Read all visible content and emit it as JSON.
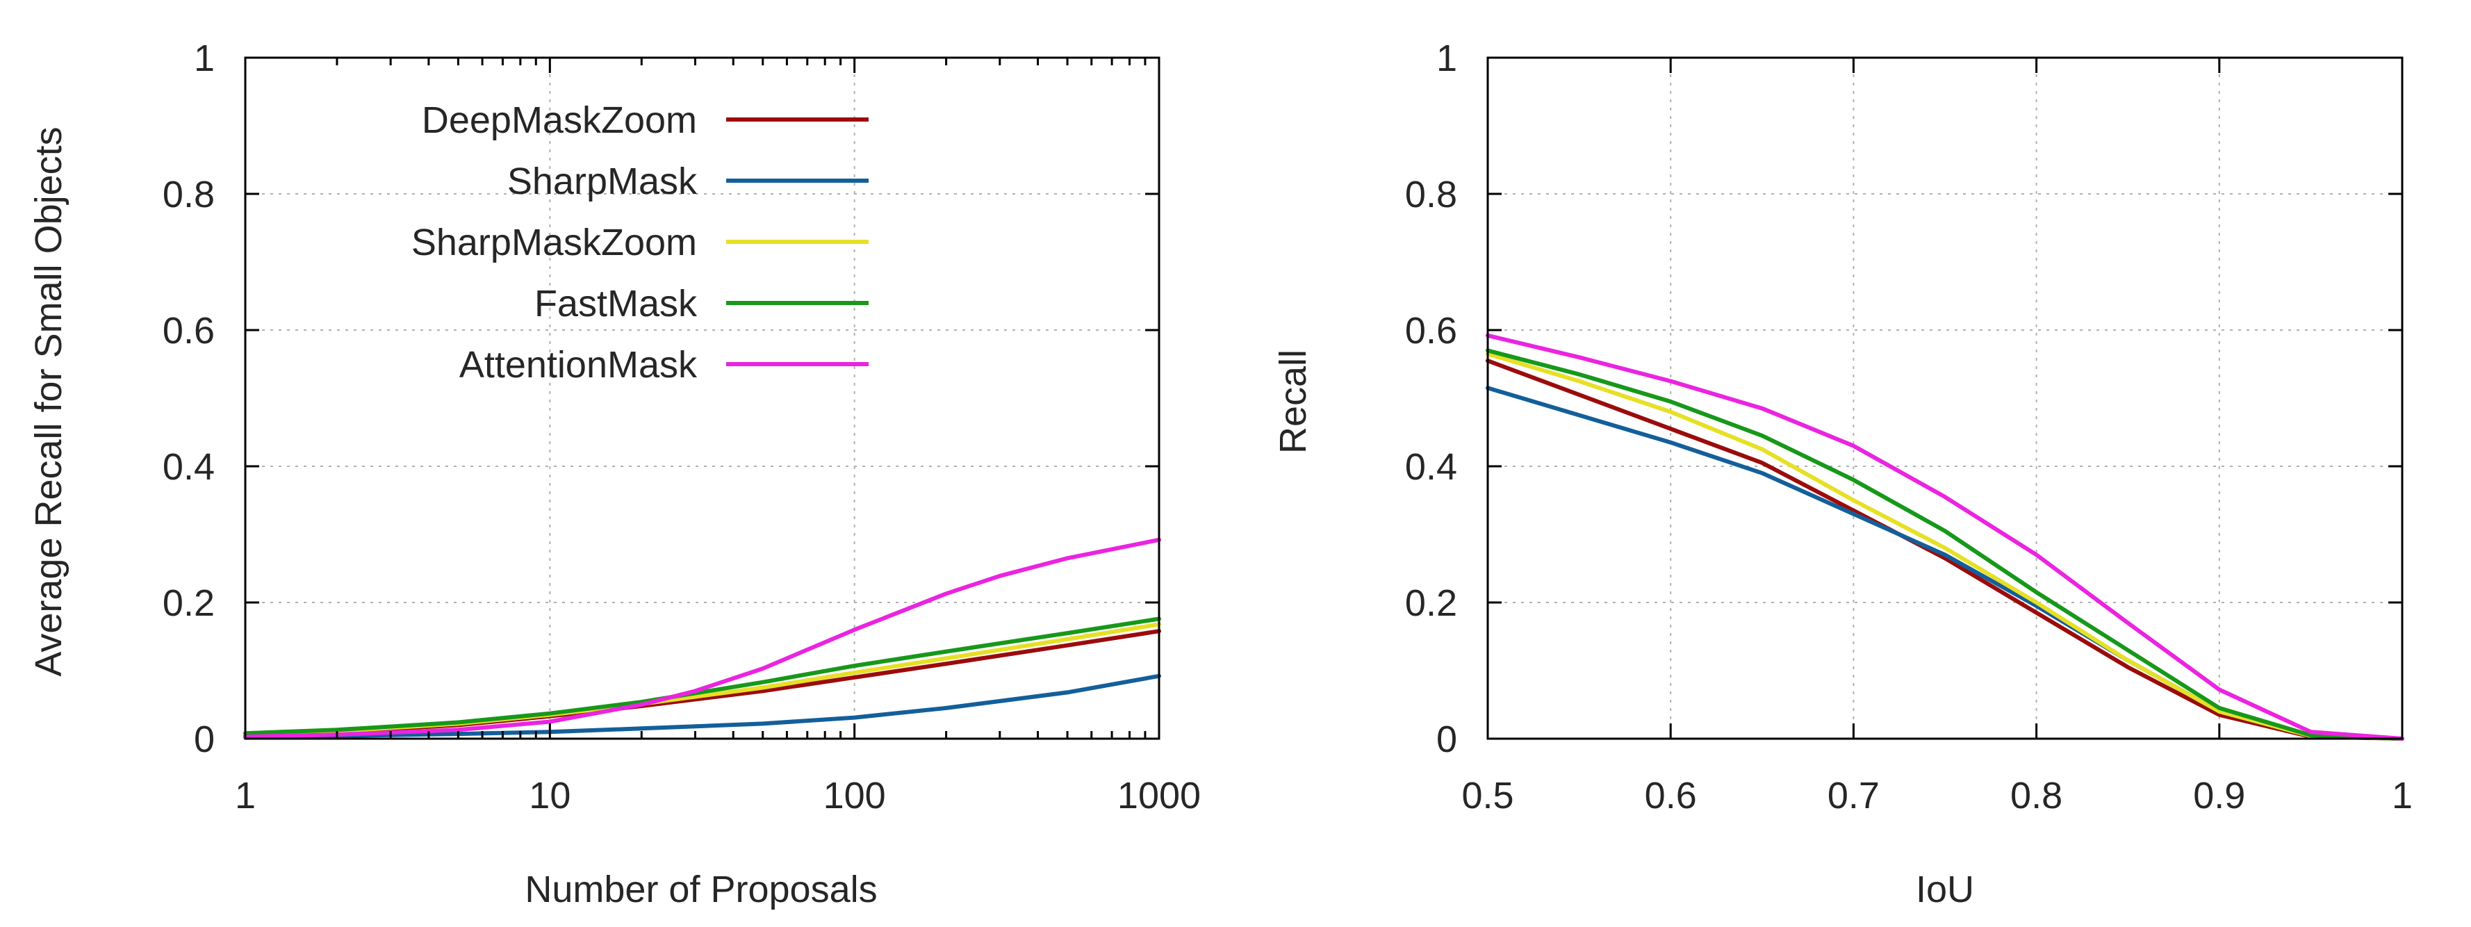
{
  "colors": {
    "DeepMaskZoom": "#9b0b0b",
    "SharpMask": "#135f9a",
    "SharpMaskZoom": "#e6e026",
    "FastMask": "#17981a",
    "AttentionMask": "#ea24e0"
  },
  "chart_data": [
    {
      "type": "line",
      "xlabel": "Number of Proposals",
      "ylabel": "Average Recall for Small Objects",
      "xscale": "log",
      "xlim": [
        1,
        1000
      ],
      "ylim": [
        0,
        1
      ],
      "xticks": [
        "1",
        "10",
        "100",
        "1000"
      ],
      "yticks": [
        "0",
        "0.2",
        "0.4",
        "0.6",
        "0.8",
        "1"
      ],
      "grid": true,
      "legend_position": "top-left",
      "series": [
        {
          "name": "DeepMaskZoom",
          "x": [
            1,
            2,
            5,
            10,
            20,
            50,
            100,
            200,
            500,
            1000
          ],
          "y": [
            0.005,
            0.01,
            0.02,
            0.033,
            0.048,
            0.07,
            0.09,
            0.11,
            0.137,
            0.158
          ]
        },
        {
          "name": "SharpMask",
          "x": [
            1,
            2,
            5,
            10,
            20,
            50,
            100,
            200,
            500,
            1000
          ],
          "y": [
            0.002,
            0.004,
            0.007,
            0.01,
            0.015,
            0.022,
            0.031,
            0.045,
            0.068,
            0.092
          ]
        },
        {
          "name": "SharpMaskZoom",
          "x": [
            1,
            2,
            5,
            10,
            20,
            50,
            100,
            200,
            500,
            1000
          ],
          "y": [
            0.006,
            0.011,
            0.022,
            0.035,
            0.051,
            0.075,
            0.097,
            0.118,
            0.146,
            0.168
          ]
        },
        {
          "name": "FastMask",
          "x": [
            1,
            2,
            5,
            10,
            20,
            50,
            100,
            200,
            500,
            1000
          ],
          "y": [
            0.008,
            0.013,
            0.024,
            0.037,
            0.054,
            0.083,
            0.107,
            0.128,
            0.155,
            0.176
          ]
        },
        {
          "name": "AttentionMask",
          "x": [
            1,
            2,
            5,
            10,
            20,
            30,
            50,
            100,
            200,
            300,
            500,
            1000
          ],
          "y": [
            0.003,
            0.006,
            0.013,
            0.025,
            0.05,
            0.07,
            0.103,
            0.16,
            0.213,
            0.239,
            0.265,
            0.292
          ]
        }
      ]
    },
    {
      "type": "line",
      "xlabel": "IoU",
      "ylabel": "Recall",
      "xlim": [
        0.5,
        1
      ],
      "ylim": [
        0,
        1
      ],
      "xticks": [
        "0.5",
        "0.6",
        "0.7",
        "0.8",
        "0.9",
        "1"
      ],
      "yticks": [
        "0",
        "0.2",
        "0.4",
        "0.6",
        "0.8",
        "1"
      ],
      "grid": true,
      "series": [
        {
          "name": "DeepMaskZoom",
          "x": [
            0.5,
            0.55,
            0.6,
            0.65,
            0.7,
            0.75,
            0.8,
            0.85,
            0.9,
            0.95,
            1.0
          ],
          "y": [
            0.555,
            0.505,
            0.455,
            0.405,
            0.335,
            0.265,
            0.185,
            0.105,
            0.035,
            0.003,
            0.0
          ]
        },
        {
          "name": "SharpMask",
          "x": [
            0.5,
            0.55,
            0.6,
            0.65,
            0.7,
            0.75,
            0.8,
            0.85,
            0.9,
            0.95,
            1.0
          ],
          "y": [
            0.515,
            0.475,
            0.435,
            0.39,
            0.33,
            0.27,
            0.195,
            0.115,
            0.04,
            0.004,
            0.0
          ]
        },
        {
          "name": "SharpMaskZoom",
          "x": [
            0.5,
            0.55,
            0.6,
            0.65,
            0.7,
            0.75,
            0.8,
            0.85,
            0.9,
            0.95,
            1.0
          ],
          "y": [
            0.565,
            0.525,
            0.48,
            0.425,
            0.35,
            0.28,
            0.2,
            0.115,
            0.04,
            0.004,
            0.0
          ]
        },
        {
          "name": "FastMask",
          "x": [
            0.5,
            0.55,
            0.6,
            0.65,
            0.7,
            0.75,
            0.8,
            0.85,
            0.9,
            0.95,
            1.0
          ],
          "y": [
            0.57,
            0.535,
            0.495,
            0.445,
            0.38,
            0.305,
            0.215,
            0.13,
            0.045,
            0.005,
            0.0
          ]
        },
        {
          "name": "AttentionMask",
          "x": [
            0.5,
            0.55,
            0.6,
            0.65,
            0.7,
            0.75,
            0.8,
            0.85,
            0.9,
            0.95,
            1.0
          ],
          "y": [
            0.592,
            0.56,
            0.525,
            0.485,
            0.43,
            0.355,
            0.27,
            0.17,
            0.072,
            0.01,
            0.0
          ]
        }
      ]
    }
  ]
}
